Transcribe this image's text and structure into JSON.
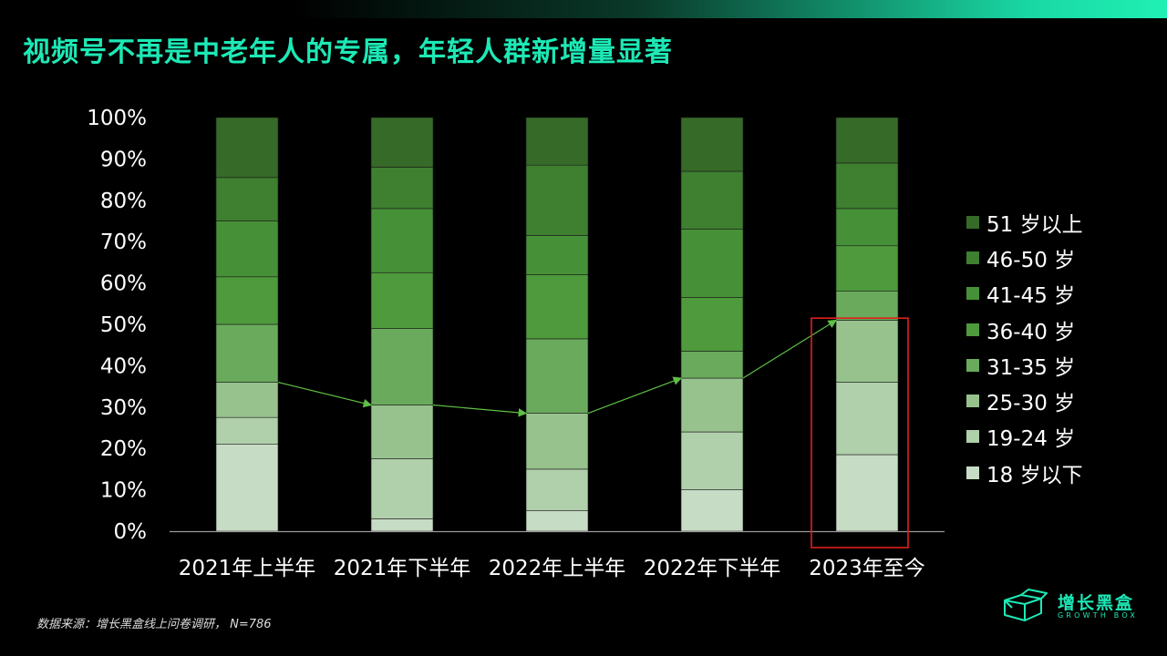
{
  "title": "视频号不再是中老年人的专属，年轻人群新增量显著",
  "source_note": "数据来源：增长黑盒线上问卷调研， N=786",
  "logo": {
    "name_cn": "增长黑盒",
    "name_en": "GROWTH BOX",
    "icon": "open-box-icon"
  },
  "colors": {
    "accent": "#1de9b6",
    "highlight_box": "#e0201d",
    "trend_line": "#5fbf45",
    "axis": "#999999"
  },
  "chart_data": {
    "type": "bar",
    "stacked": true,
    "title": "",
    "xlabel": "",
    "ylabel": "",
    "ylim": [
      0,
      100
    ],
    "y_ticks": [
      "0%",
      "10%",
      "20%",
      "30%",
      "40%",
      "50%",
      "60%",
      "70%",
      "80%",
      "90%",
      "100%"
    ],
    "categories": [
      "2021年上半年",
      "2021年下半年",
      "2022年上半年",
      "2022年下半年",
      "2023年至今"
    ],
    "series": [
      {
        "name": "18 岁以下",
        "color": "#c7dcc5",
        "values": [
          21,
          3,
          5,
          10,
          18.5
        ]
      },
      {
        "name": "19-24 岁",
        "color": "#b0cfab",
        "values": [
          6.5,
          14.5,
          10,
          14,
          17.5
        ]
      },
      {
        "name": "25-30 岁",
        "color": "#97c28d",
        "values": [
          8.5,
          13,
          13.5,
          13,
          15
        ]
      },
      {
        "name": "31-35 岁",
        "color": "#6aaa5c",
        "values": [
          14,
          18.5,
          18,
          6.5,
          7
        ]
      },
      {
        "name": "36-40 岁",
        "color": "#4e9a3c",
        "values": [
          11.5,
          13.5,
          15.5,
          13,
          11
        ]
      },
      {
        "name": "41-45 岁",
        "color": "#469137",
        "values": [
          13.5,
          15.5,
          9.5,
          16.5,
          9
        ]
      },
      {
        "name": "46-50 岁",
        "color": "#3e7f30",
        "values": [
          10.5,
          10,
          17,
          14,
          11
        ]
      },
      {
        "name": "51 岁以上",
        "color": "#366a28",
        "values": [
          14.5,
          12,
          11.5,
          13,
          11
        ]
      }
    ],
    "annotations": [
      {
        "type": "trend-line",
        "description": "connects 31-35岁 lower boundary (18-30岁 cumulative share) across bars",
        "values": [
          36,
          30.5,
          28.5,
          37,
          51
        ]
      },
      {
        "type": "highlight-box",
        "category": "2023年至今"
      }
    ],
    "legend_placement": "right",
    "grid": false
  }
}
